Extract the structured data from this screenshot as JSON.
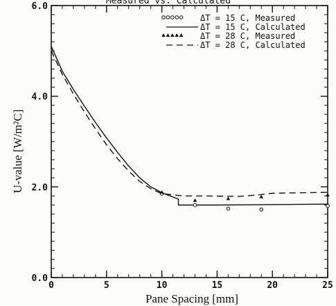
{
  "chart_data": {
    "type": "line",
    "title": "Measured vs. Calculated",
    "xlabel": "Pane Spacing [mm]",
    "ylabel": "U-value [W/m²C]",
    "xlim": [
      0,
      25
    ],
    "ylim": [
      0,
      6
    ],
    "xticks": [
      0,
      5,
      10,
      15,
      20,
      25
    ],
    "yticks": [
      0,
      2,
      4,
      6
    ],
    "ytick_labels": [
      "0.0",
      "2.0",
      "4.0",
      "6.0"
    ],
    "x_minor_step": 1,
    "y_minor_step": 0.2,
    "grid": false,
    "legend_position": "top-right",
    "series": [
      {
        "name": "ΔT = 15 C, Measured",
        "style": "open-circle-markers",
        "x": [
          10,
          13,
          16,
          19,
          25
        ],
        "y": [
          1.85,
          1.6,
          1.52,
          1.5,
          1.58
        ]
      },
      {
        "name": "ΔT = 15 C, Calculated",
        "style": "solid",
        "x": [
          0,
          1,
          2,
          3,
          4,
          5,
          6,
          7,
          8,
          9,
          10,
          11.5,
          11.5,
          15,
          20,
          25
        ],
        "y": [
          5.1,
          4.55,
          4.15,
          3.78,
          3.42,
          3.08,
          2.76,
          2.46,
          2.2,
          2.0,
          1.87,
          1.73,
          1.6,
          1.6,
          1.61,
          1.62
        ]
      },
      {
        "name": "ΔT = 28 C, Measured",
        "style": "filled-triangle-markers",
        "x": [
          10,
          13,
          16,
          19,
          25
        ],
        "y": [
          1.88,
          1.7,
          1.74,
          1.78,
          1.82
        ]
      },
      {
        "name": "ΔT = 28 C, Calculated",
        "style": "dashed",
        "x": [
          0,
          1,
          2,
          3,
          4,
          5,
          6,
          7,
          8,
          9,
          10,
          12,
          14,
          17,
          19,
          20,
          25
        ],
        "y": [
          5.0,
          4.48,
          4.05,
          3.65,
          3.28,
          2.93,
          2.62,
          2.35,
          2.12,
          1.96,
          1.85,
          1.8,
          1.8,
          1.79,
          1.83,
          1.86,
          1.88
        ]
      }
    ]
  }
}
